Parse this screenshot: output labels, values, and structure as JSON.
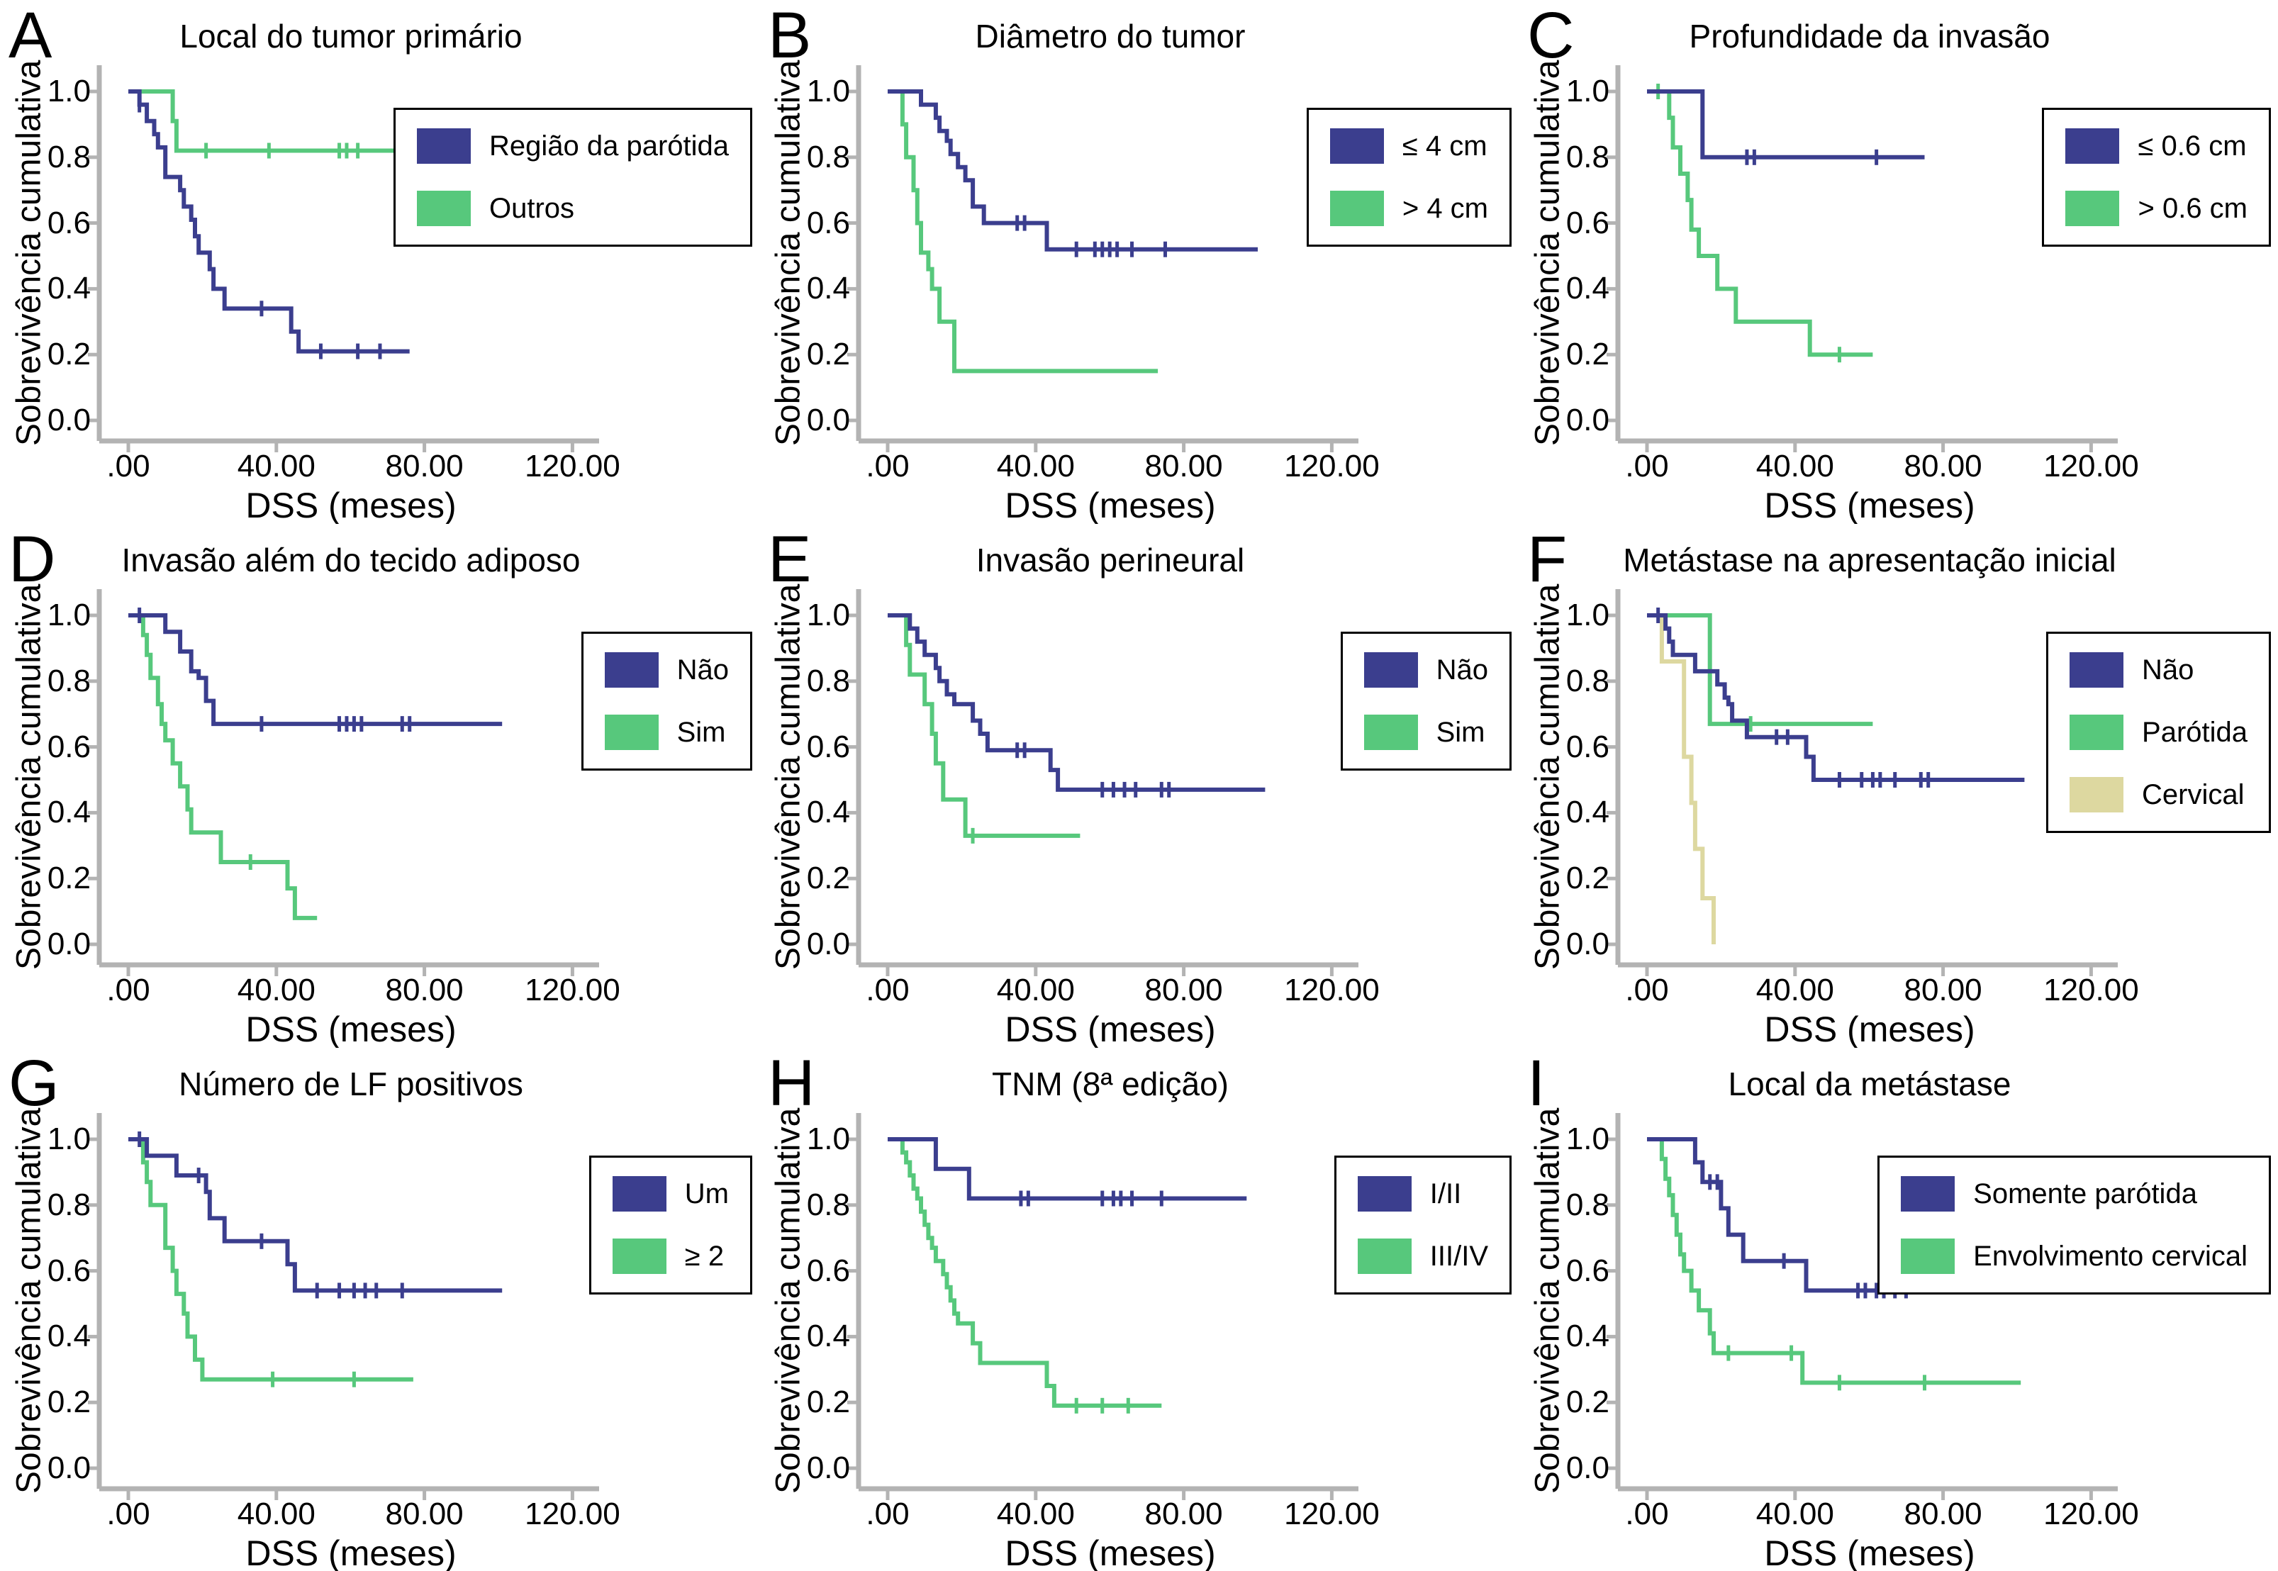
{
  "figure": {
    "x_label": "DSS (meses)",
    "y_label": "Sobrevivência cumulativa",
    "x_ticks": [
      {
        "m": 0,
        "label": ".00"
      },
      {
        "m": 40,
        "label": "40.00"
      },
      {
        "m": 80,
        "label": "80.00"
      },
      {
        "m": 120,
        "label": "120.00"
      }
    ],
    "y_ticks": [
      {
        "s": 1.0,
        "label": "1.0"
      },
      {
        "s": 0.8,
        "label": "0.8"
      },
      {
        "s": 0.6,
        "label": "0.6"
      },
      {
        "s": 0.4,
        "label": "0.4"
      },
      {
        "s": 0.2,
        "label": "0.2"
      },
      {
        "s": 0.0,
        "label": "0.0"
      }
    ],
    "colors": {
      "navy": "#3b3e8e",
      "green": "#57c87c",
      "tan": "#ddd8a0"
    },
    "axis_color": "#b3b3b3"
  },
  "chart_data": [
    {
      "type": "line",
      "panel": "A",
      "title": "Local do tumor primário",
      "xlabel": "DSS (meses)",
      "ylabel": "Sobrevivência cumulativa",
      "xlim": [
        0,
        135
      ],
      "ylim": [
        0,
        1.05
      ],
      "series": [
        {
          "name": "Região da parótida",
          "color": "navy",
          "steps": [
            [
              0,
              1.0
            ],
            [
              3,
              0.96
            ],
            [
              5,
              0.91
            ],
            [
              7,
              0.87
            ],
            [
              8,
              0.83
            ],
            [
              10,
              0.74
            ],
            [
              14,
              0.7
            ],
            [
              15,
              0.65
            ],
            [
              17,
              0.61
            ],
            [
              18,
              0.56
            ],
            [
              19,
              0.51
            ],
            [
              22,
              0.46
            ],
            [
              23,
              0.4
            ],
            [
              26,
              0.34
            ],
            [
              44,
              0.27
            ],
            [
              46,
              0.21
            ]
          ],
          "end": 76,
          "censors": [
            3,
            36,
            52,
            62,
            68
          ]
        },
        {
          "name": "Outros",
          "color": "green",
          "steps": [
            [
              0,
              1.0
            ],
            [
              12,
              0.91
            ],
            [
              13,
              0.82
            ]
          ],
          "end": 101,
          "censors": [
            21,
            38,
            57,
            59,
            62,
            73,
            100
          ]
        }
      ]
    },
    {
      "type": "line",
      "panel": "B",
      "title": "Diâmetro do tumor",
      "xlabel": "DSS (meses)",
      "ylabel": "Sobrevivência cumulativa",
      "xlim": [
        0,
        135
      ],
      "ylim": [
        0,
        1.05
      ],
      "series": [
        {
          "name": "≤ 4 cm",
          "color": "navy",
          "steps": [
            [
              0,
              1.0
            ],
            [
              9,
              0.96
            ],
            [
              13,
              0.92
            ],
            [
              14,
              0.88
            ],
            [
              16,
              0.85
            ],
            [
              17,
              0.81
            ],
            [
              19,
              0.77
            ],
            [
              21,
              0.73
            ],
            [
              23,
              0.65
            ],
            [
              26,
              0.6
            ],
            [
              43,
              0.52
            ]
          ],
          "end": 100,
          "censors": [
            35,
            37,
            51,
            56,
            58,
            60,
            62,
            66,
            75
          ]
        },
        {
          "name": "> 4 cm",
          "color": "green",
          "steps": [
            [
              0,
              1.0
            ],
            [
              4,
              0.9
            ],
            [
              5,
              0.8
            ],
            [
              7,
              0.7
            ],
            [
              8,
              0.6
            ],
            [
              9,
              0.51
            ],
            [
              11,
              0.46
            ],
            [
              12,
              0.4
            ],
            [
              14,
              0.3
            ],
            [
              18,
              0.15
            ]
          ],
          "end": 73,
          "censors": []
        }
      ]
    },
    {
      "type": "line",
      "panel": "C",
      "title": "Profundidade da invasão",
      "xlabel": "DSS (meses)",
      "ylabel": "Sobrevivência cumulativa",
      "xlim": [
        0,
        135
      ],
      "ylim": [
        0,
        1.05
      ],
      "series": [
        {
          "name": "≤ 0.6 cm",
          "color": "navy",
          "steps": [
            [
              0,
              1.0
            ],
            [
              15,
              0.8
            ]
          ],
          "end": 75,
          "censors": [
            27,
            29,
            62
          ]
        },
        {
          "name": "> 0.6 cm",
          "color": "green",
          "steps": [
            [
              0,
              1.0
            ],
            [
              6,
              0.92
            ],
            [
              7,
              0.83
            ],
            [
              9,
              0.75
            ],
            [
              11,
              0.67
            ],
            [
              12,
              0.58
            ],
            [
              14,
              0.5
            ],
            [
              19,
              0.4
            ],
            [
              24,
              0.3
            ],
            [
              44,
              0.2
            ]
          ],
          "end": 61,
          "censors": [
            3,
            52
          ]
        }
      ]
    },
    {
      "type": "line",
      "panel": "D",
      "title": "Invasão além do tecido adiposo",
      "xlabel": "DSS (meses)",
      "ylabel": "Sobrevivência cumulativa",
      "xlim": [
        0,
        135
      ],
      "ylim": [
        0,
        1.05
      ],
      "series": [
        {
          "name": "Não",
          "color": "navy",
          "steps": [
            [
              0,
              1.0
            ],
            [
              10,
              0.95
            ],
            [
              14,
              0.89
            ],
            [
              17,
              0.83
            ],
            [
              19,
              0.81
            ],
            [
              21,
              0.74
            ],
            [
              23,
              0.67
            ]
          ],
          "end": 101,
          "censors": [
            3,
            36,
            57,
            59,
            61,
            63,
            74,
            76
          ]
        },
        {
          "name": "Sim",
          "color": "green",
          "steps": [
            [
              0,
              1.0
            ],
            [
              4,
              0.94
            ],
            [
              5,
              0.88
            ],
            [
              6,
              0.81
            ],
            [
              8,
              0.73
            ],
            [
              9,
              0.67
            ],
            [
              10,
              0.62
            ],
            [
              12,
              0.55
            ],
            [
              14,
              0.48
            ],
            [
              16,
              0.41
            ],
            [
              17,
              0.34
            ],
            [
              25,
              0.25
            ],
            [
              43,
              0.17
            ],
            [
              45,
              0.08
            ]
          ],
          "end": 51,
          "censors": [
            33
          ]
        }
      ]
    },
    {
      "type": "line",
      "panel": "E",
      "title": "Invasão perineural",
      "xlabel": "DSS (meses)",
      "ylabel": "Sobrevivência cumulativa",
      "xlim": [
        0,
        135
      ],
      "ylim": [
        0,
        1.05
      ],
      "series": [
        {
          "name": "Não",
          "color": "navy",
          "steps": [
            [
              0,
              1.0
            ],
            [
              6,
              0.96
            ],
            [
              8,
              0.92
            ],
            [
              10,
              0.88
            ],
            [
              13,
              0.84
            ],
            [
              14,
              0.8
            ],
            [
              16,
              0.76
            ],
            [
              18,
              0.73
            ],
            [
              23,
              0.68
            ],
            [
              25,
              0.64
            ],
            [
              27,
              0.59
            ],
            [
              44,
              0.53
            ],
            [
              46,
              0.47
            ]
          ],
          "end": 102,
          "censors": [
            35,
            37,
            58,
            61,
            64,
            67,
            74,
            76
          ]
        },
        {
          "name": "Sim",
          "color": "green",
          "steps": [
            [
              0,
              1.0
            ],
            [
              5,
              0.91
            ],
            [
              6,
              0.82
            ],
            [
              10,
              0.73
            ],
            [
              12,
              0.64
            ],
            [
              13,
              0.55
            ],
            [
              15,
              0.44
            ],
            [
              21,
              0.33
            ]
          ],
          "end": 52,
          "censors": [
            23
          ]
        }
      ]
    },
    {
      "type": "line",
      "panel": "F",
      "title": "Metástase na apresentação inicial",
      "xlabel": "DSS (meses)",
      "ylabel": "Sobrevivência cumulativa",
      "xlim": [
        0,
        135
      ],
      "ylim": [
        0,
        1.05
      ],
      "series": [
        {
          "name": "Não",
          "color": "navy",
          "steps": [
            [
              0,
              1.0
            ],
            [
              5,
              0.96
            ],
            [
              6,
              0.92
            ],
            [
              7,
              0.88
            ],
            [
              13,
              0.83
            ],
            [
              19,
              0.79
            ],
            [
              21,
              0.75
            ],
            [
              22,
              0.73
            ],
            [
              23,
              0.68
            ],
            [
              27,
              0.63
            ],
            [
              43,
              0.57
            ],
            [
              45,
              0.5
            ]
          ],
          "end": 102,
          "censors": [
            3,
            35,
            38,
            52,
            58,
            61,
            63,
            67,
            74,
            76
          ]
        },
        {
          "name": "Parótida",
          "color": "green",
          "steps": [
            [
              0,
              1.0
            ],
            [
              17,
              0.67
            ]
          ],
          "end": 61,
          "censors": [
            28
          ]
        },
        {
          "name": "Cervical",
          "color": "tan",
          "steps": [
            [
              0,
              1.0
            ],
            [
              4,
              0.86
            ],
            [
              10,
              0.57
            ],
            [
              12,
              0.43
            ],
            [
              13,
              0.29
            ],
            [
              15,
              0.14
            ],
            [
              18,
              0.0
            ]
          ],
          "end": 18,
          "censors": []
        }
      ]
    },
    {
      "type": "line",
      "panel": "G",
      "title": "Número de LF positivos",
      "xlabel": "DSS (meses)",
      "ylabel": "Sobrevivência cumulativa",
      "xlim": [
        0,
        135
      ],
      "ylim": [
        0,
        1.05
      ],
      "series": [
        {
          "name": "Um",
          "color": "navy",
          "steps": [
            [
              0,
              1.0
            ],
            [
              5,
              0.95
            ],
            [
              13,
              0.89
            ],
            [
              21,
              0.84
            ],
            [
              22,
              0.76
            ],
            [
              26,
              0.69
            ],
            [
              43,
              0.62
            ],
            [
              45,
              0.54
            ]
          ],
          "end": 101,
          "censors": [
            3,
            19,
            36,
            51,
            57,
            61,
            64,
            67,
            74
          ]
        },
        {
          "name": "≥ 2",
          "color": "green",
          "steps": [
            [
              0,
              1.0
            ],
            [
              4,
              0.93
            ],
            [
              5,
              0.87
            ],
            [
              6,
              0.8
            ],
            [
              10,
              0.67
            ],
            [
              12,
              0.6
            ],
            [
              13,
              0.53
            ],
            [
              15,
              0.47
            ],
            [
              16,
              0.4
            ],
            [
              18,
              0.33
            ],
            [
              20,
              0.27
            ]
          ],
          "end": 77,
          "censors": [
            39,
            61
          ]
        }
      ]
    },
    {
      "type": "line",
      "panel": "H",
      "title": "TNM (8ª edição)",
      "xlabel": "DSS (meses)",
      "ylabel": "Sobrevivência cumulativa",
      "xlim": [
        0,
        135
      ],
      "ylim": [
        0,
        1.05
      ],
      "series": [
        {
          "name": "I/II",
          "color": "navy",
          "steps": [
            [
              0,
              1.0
            ],
            [
              13,
              0.91
            ],
            [
              22,
              0.82
            ]
          ],
          "end": 97,
          "censors": [
            36,
            38,
            58,
            61,
            63,
            66,
            74
          ]
        },
        {
          "name": "III/IV",
          "color": "green",
          "steps": [
            [
              0,
              1.0
            ],
            [
              4,
              0.96
            ],
            [
              5,
              0.93
            ],
            [
              6,
              0.89
            ],
            [
              7,
              0.85
            ],
            [
              8,
              0.82
            ],
            [
              9,
              0.78
            ],
            [
              10,
              0.74
            ],
            [
              11,
              0.7
            ],
            [
              12,
              0.67
            ],
            [
              13,
              0.63
            ],
            [
              15,
              0.59
            ],
            [
              16,
              0.55
            ],
            [
              17,
              0.51
            ],
            [
              18,
              0.47
            ],
            [
              19,
              0.44
            ],
            [
              23,
              0.38
            ],
            [
              25,
              0.32
            ],
            [
              43,
              0.25
            ],
            [
              45,
              0.19
            ]
          ],
          "end": 74,
          "censors": [
            51,
            58,
            65
          ]
        }
      ]
    },
    {
      "type": "line",
      "panel": "I",
      "title": "Local da metástase",
      "xlabel": "DSS (meses)",
      "ylabel": "Sobrevivência cumulativa",
      "xlim": [
        0,
        135
      ],
      "ylim": [
        0,
        1.05
      ],
      "series": [
        {
          "name": "Somente parótida",
          "color": "navy",
          "steps": [
            [
              0,
              1.0
            ],
            [
              13,
              0.93
            ],
            [
              15,
              0.87
            ],
            [
              20,
              0.79
            ],
            [
              22,
              0.71
            ],
            [
              26,
              0.63
            ],
            [
              43,
              0.54
            ]
          ],
          "end": 74,
          "censors": [
            17,
            19,
            37,
            57,
            59,
            62,
            64,
            67,
            70
          ]
        },
        {
          "name": "Envolvimento cervical",
          "color": "green",
          "steps": [
            [
              0,
              1.0
            ],
            [
              4,
              0.94
            ],
            [
              5,
              0.88
            ],
            [
              6,
              0.83
            ],
            [
              7,
              0.77
            ],
            [
              8,
              0.71
            ],
            [
              9,
              0.65
            ],
            [
              10,
              0.6
            ],
            [
              12,
              0.54
            ],
            [
              14,
              0.48
            ],
            [
              17,
              0.41
            ],
            [
              18,
              0.35
            ],
            [
              42,
              0.26
            ]
          ],
          "end": 101,
          "censors": [
            22,
            39,
            52,
            75
          ]
        }
      ]
    }
  ]
}
